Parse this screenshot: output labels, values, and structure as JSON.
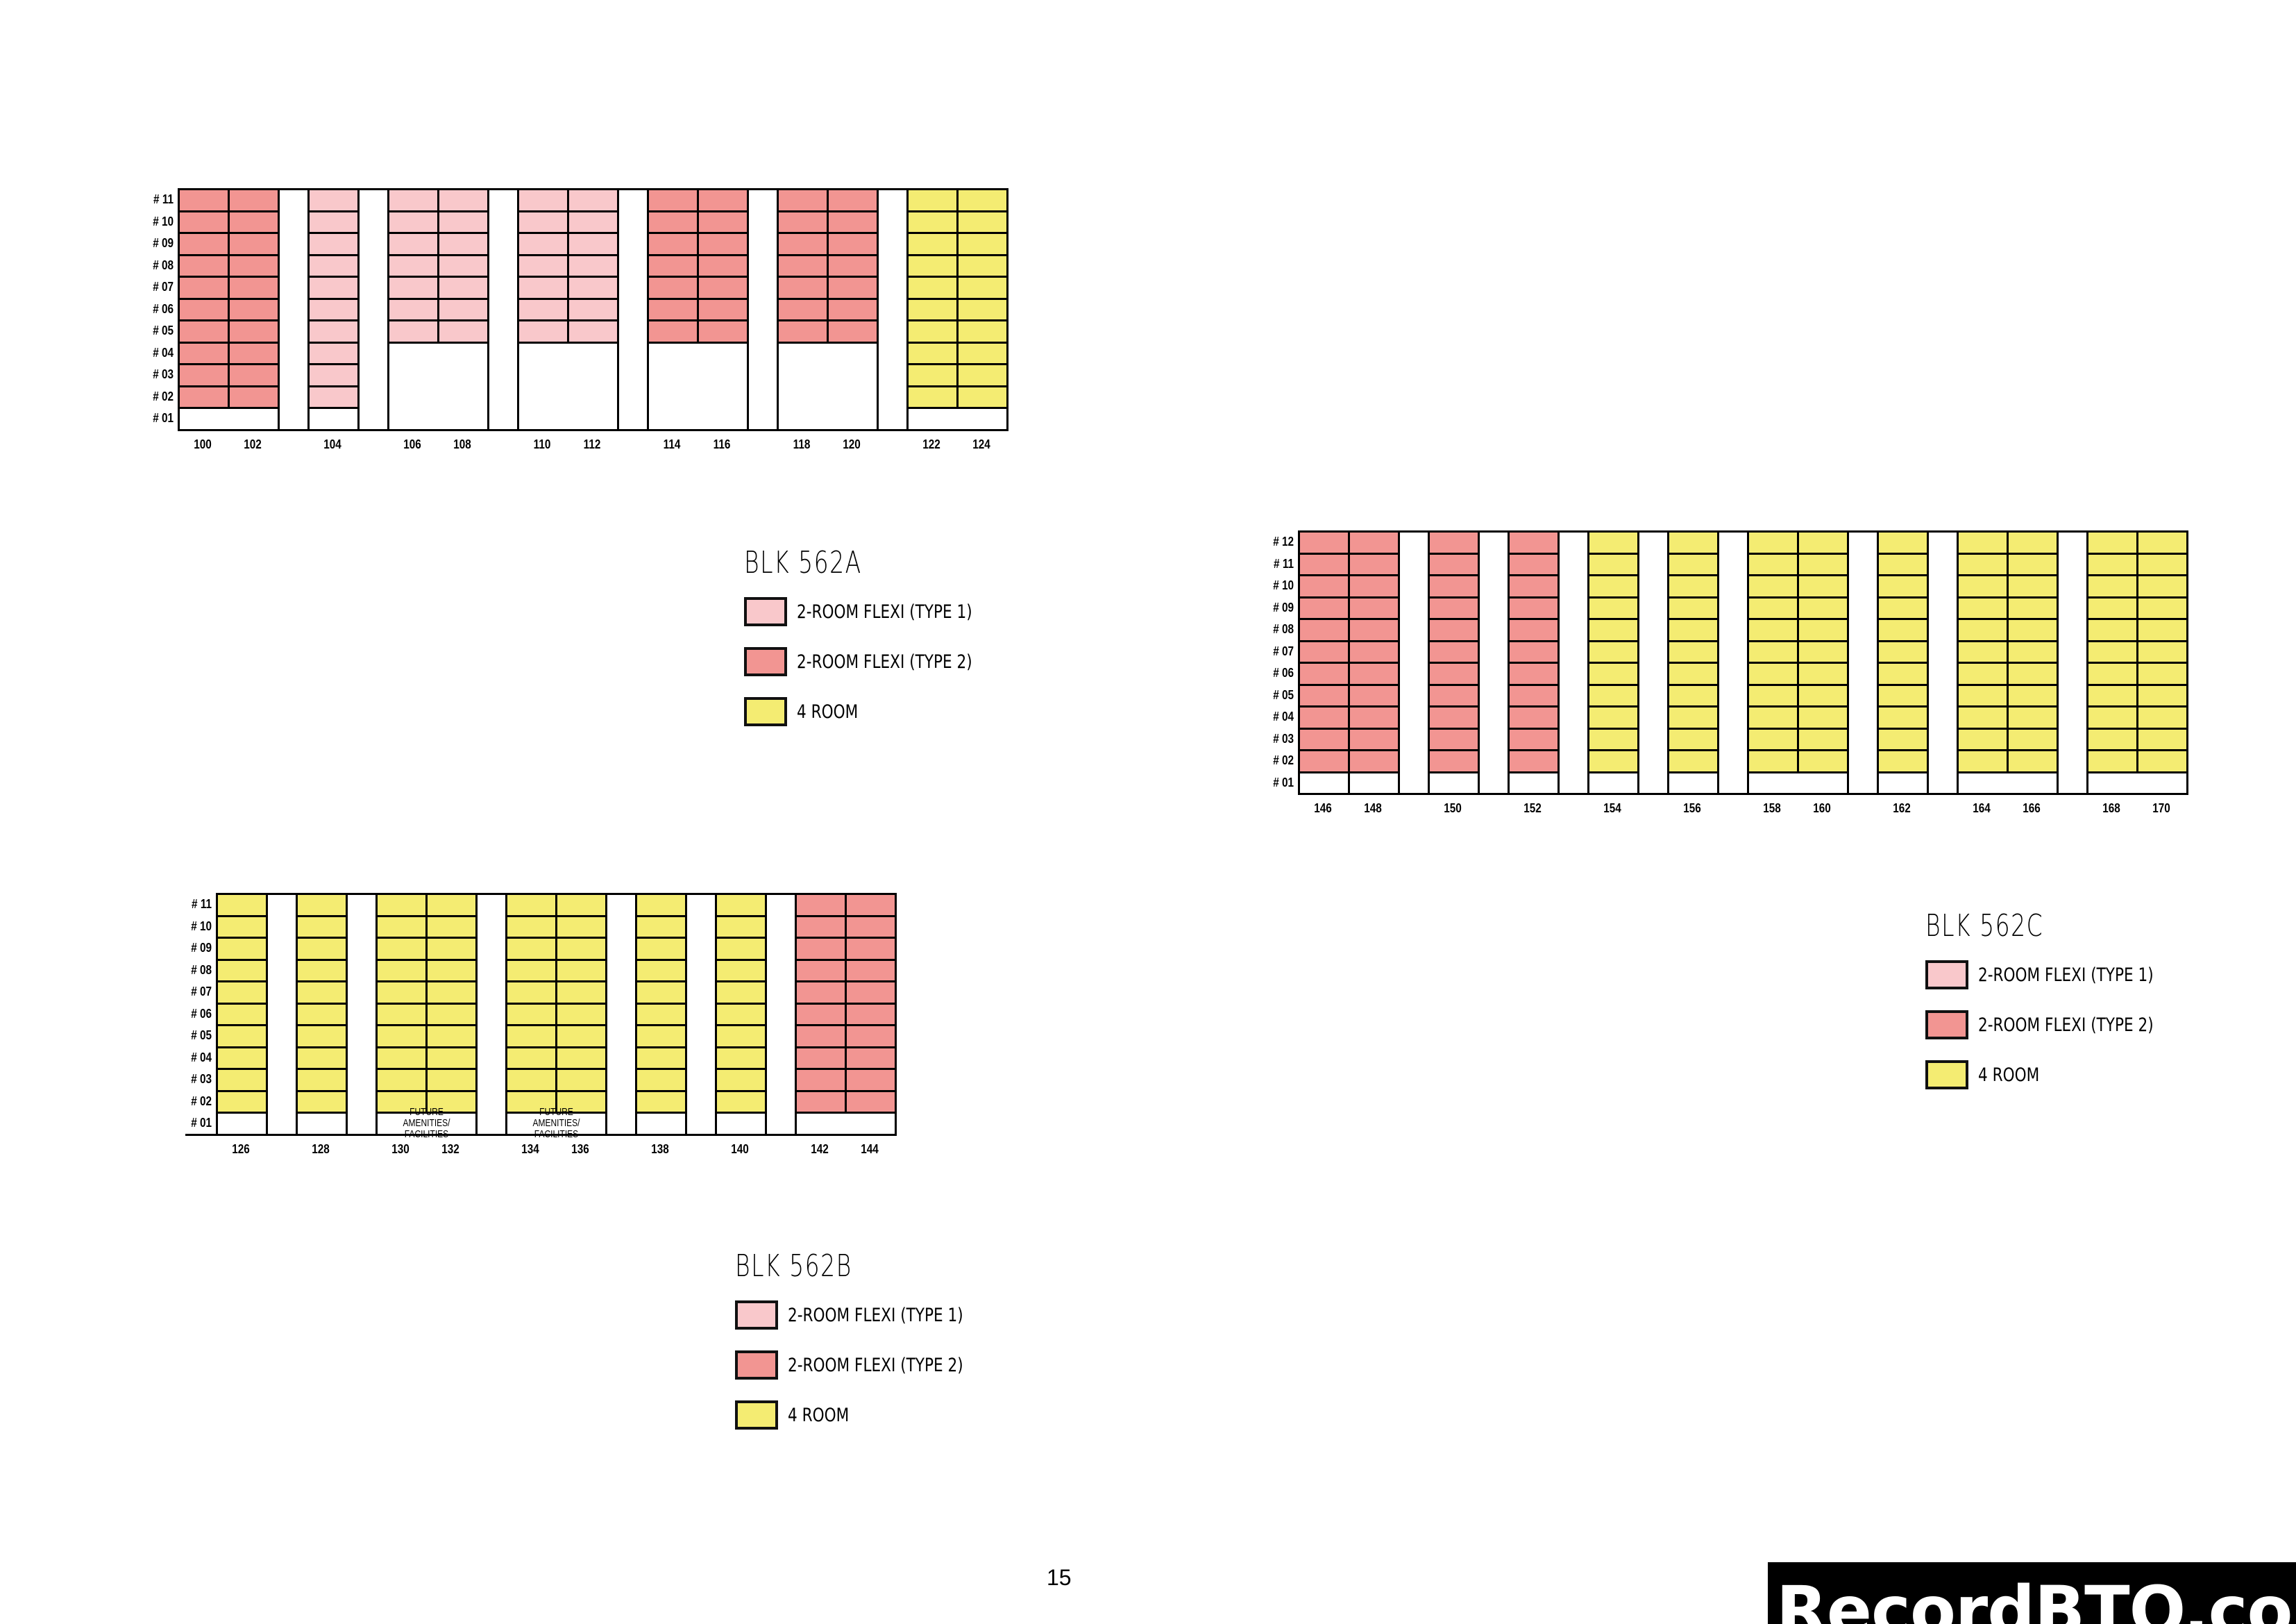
{
  "colors": {
    "type1": "#f9c8cb",
    "type2": "#f29592",
    "room4": "#f4ec72"
  },
  "legend_items": [
    {
      "key": "type1",
      "label": "2-ROOM FLEXI (TYPE 1)"
    },
    {
      "key": "type2",
      "label": "2-ROOM FLEXI (TYPE 2)"
    },
    {
      "key": "room4",
      "label": "4 ROOM"
    }
  ],
  "blocks": [
    {
      "id": "562A",
      "title": "BLK 562A",
      "floors": [
        "# 11",
        "# 10",
        "# 09",
        "# 08",
        "# 07",
        "# 06",
        "# 05",
        "# 04",
        "# 03",
        "# 02",
        "# 01"
      ],
      "groups": [
        {
          "units": [
            "100",
            "102"
          ],
          "type": "type2",
          "from": 2
        },
        {
          "units": [
            "104"
          ],
          "type": "type1",
          "from": 2
        },
        {
          "units": [
            "106",
            "108"
          ],
          "type": "type1",
          "from": 5
        },
        {
          "units": [
            "110",
            "112"
          ],
          "type": "type1",
          "from": 5
        },
        {
          "units": [
            "114",
            "116"
          ],
          "type": "type2",
          "from": 5
        },
        {
          "units": [
            "118",
            "120"
          ],
          "type": "type2",
          "from": 5
        },
        {
          "units": [
            "122",
            "124"
          ],
          "type": "room4",
          "from": 2
        }
      ]
    },
    {
      "id": "562B",
      "title": "BLK 562B",
      "floors": [
        "# 11",
        "# 10",
        "# 09",
        "# 08",
        "# 07",
        "# 06",
        "# 05",
        "# 04",
        "# 03",
        "# 02",
        "# 01"
      ],
      "groups": [
        {
          "units": [
            "126"
          ],
          "type": "room4",
          "from": 2
        },
        {
          "units": [
            "128"
          ],
          "type": "room4",
          "from": 2
        },
        {
          "units": [
            "130",
            "132"
          ],
          "type": "room4",
          "from": 2,
          "ground_text": "FUTURE AMENITIES/ FACILITIES"
        },
        {
          "units": [
            "134",
            "136"
          ],
          "type": "room4",
          "from": 2,
          "ground_text": "FUTURE AMENITIES/ FACILITIES"
        },
        {
          "units": [
            "138"
          ],
          "type": "room4",
          "from": 2
        },
        {
          "units": [
            "140"
          ],
          "type": "room4",
          "from": 2
        },
        {
          "units": [
            "142",
            "144"
          ],
          "type": "type2",
          "from": 2
        }
      ]
    },
    {
      "id": "562C",
      "title": "BLK 562C",
      "floors": [
        "# 12",
        "# 11",
        "# 10",
        "# 09",
        "# 08",
        "# 07",
        "# 06",
        "# 05",
        "# 04",
        "# 03",
        "# 02",
        "# 01"
      ],
      "groups": [
        {
          "units": [
            "146",
            "148"
          ],
          "type": "type2",
          "from": 2,
          "ground_split": true
        },
        {
          "units": [
            "150"
          ],
          "type": "type2",
          "from": 2
        },
        {
          "units": [
            "152"
          ],
          "type": "type2",
          "from": 2
        },
        {
          "units": [
            "154"
          ],
          "type": "room4",
          "from": 2
        },
        {
          "units": [
            "156"
          ],
          "type": "room4",
          "from": 2
        },
        {
          "units": [
            "158",
            "160"
          ],
          "type": "room4",
          "from": 2
        },
        {
          "units": [
            "162"
          ],
          "type": "room4",
          "from": 2
        },
        {
          "units": [
            "164",
            "166"
          ],
          "type": "room4",
          "from": 2
        },
        {
          "units": [
            "168",
            "170"
          ],
          "type": "room4",
          "from": 2
        }
      ]
    }
  ],
  "page_number": "15",
  "watermark": "RecordBTO.com"
}
